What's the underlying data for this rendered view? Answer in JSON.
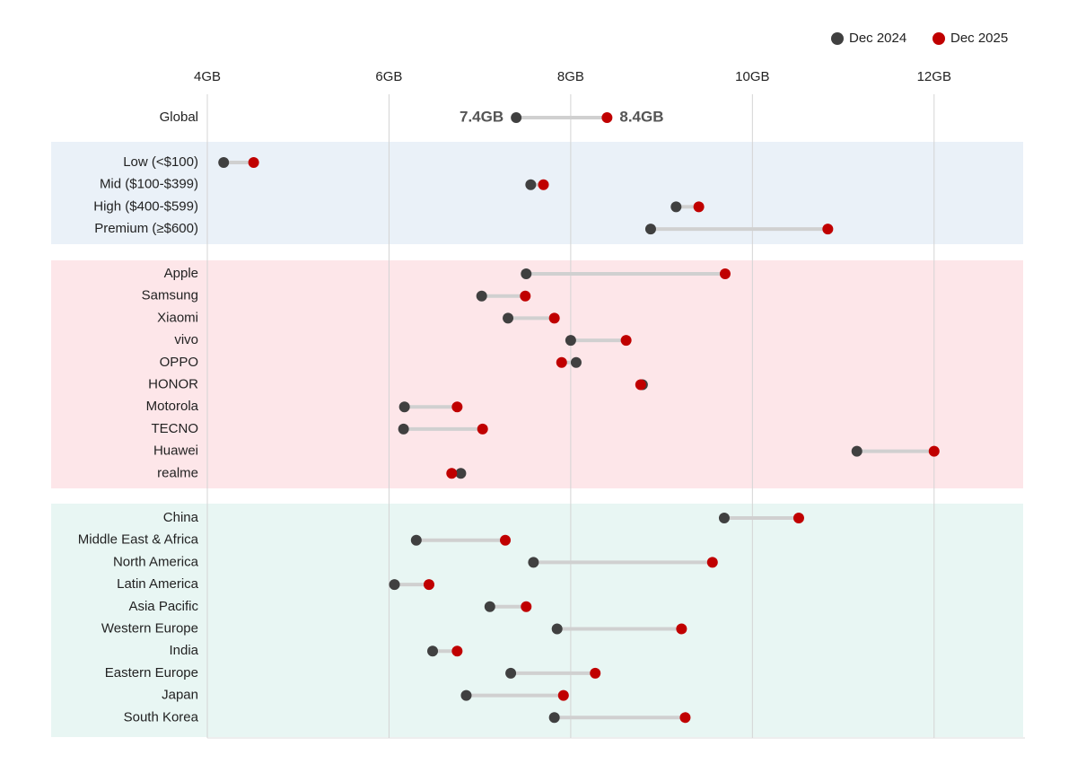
{
  "chart_data": {
    "type": "dumbbell",
    "categories": [
      "Global",
      "Low (<$100)",
      "Mid ($100-$399)",
      "High ($400-$599)",
      "Premium (≥$600)",
      "Apple",
      "Samsung",
      "Xiaomi",
      "vivo",
      "OPPO",
      "HONOR",
      "Motorola",
      "TECNO",
      "Huawei",
      "realme",
      "China",
      "Middle East & Africa",
      "North America",
      "Latin America",
      "Asia Pacific",
      "Western Europe",
      "India",
      "Eastern Europe",
      "Japan",
      "South Korea"
    ],
    "series": [
      {
        "name": "Dec 2024",
        "color": "#404040",
        "values": [
          7.4,
          4.18,
          7.56,
          9.16,
          8.88,
          7.51,
          7.02,
          7.31,
          8.0,
          8.06,
          8.79,
          6.17,
          6.16,
          11.15,
          6.79,
          9.69,
          6.3,
          7.59,
          6.06,
          7.11,
          7.85,
          6.48,
          7.34,
          6.85,
          7.82
        ],
        "value_labels": [
          "7.4GB",
          null,
          null,
          null,
          null,
          null,
          null,
          null,
          null,
          null,
          null,
          null,
          null,
          null,
          null,
          null,
          null,
          null,
          null,
          null,
          null,
          null,
          null,
          null,
          null
        ]
      },
      {
        "name": "Dec 2025",
        "color": "#c00000",
        "values": [
          8.4,
          4.51,
          7.7,
          9.41,
          10.83,
          9.7,
          7.5,
          7.82,
          8.61,
          7.9,
          8.77,
          6.75,
          7.03,
          12.0,
          6.69,
          10.51,
          7.28,
          9.56,
          6.44,
          7.51,
          9.22,
          6.75,
          8.27,
          7.92,
          9.26
        ],
        "value_labels": [
          "8.4GB",
          null,
          null,
          null,
          null,
          null,
          null,
          null,
          null,
          null,
          null,
          null,
          null,
          null,
          null,
          null,
          null,
          null,
          null,
          null,
          null,
          null,
          null,
          null,
          null
        ]
      }
    ],
    "xlim": [
      4,
      13
    ],
    "xticks": [
      {
        "value": 4,
        "label": "4GB"
      },
      {
        "value": 6,
        "label": "6GB"
      },
      {
        "value": 8,
        "label": "8GB"
      },
      {
        "value": 10,
        "label": "10GB"
      },
      {
        "value": 12,
        "label": "12GB"
      }
    ],
    "grid": true,
    "legend": "top-right"
  }
}
